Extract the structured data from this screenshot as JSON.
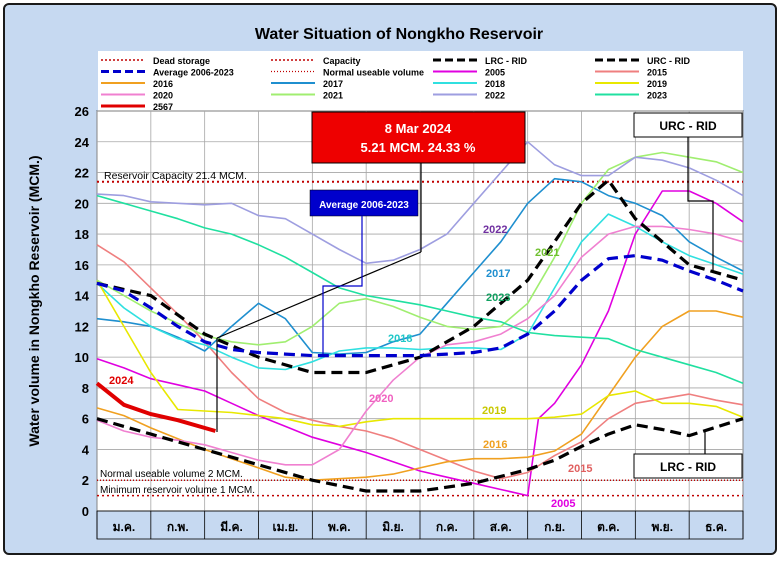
{
  "chart_data": {
    "type": "line",
    "title": "Water Situation of Nongkho Reservoir",
    "ylabel": "Water volume in Nongkho Reservoir (MCM.)",
    "xlabel": "",
    "ylim": [
      0,
      26
    ],
    "yticks": [
      0,
      2,
      4,
      6,
      8,
      10,
      12,
      14,
      16,
      18,
      20,
      22,
      24,
      26
    ],
    "months": [
      "ม.ค.",
      "ก.พ.",
      "มี.ค.",
      "เม.ย.",
      "พ.ค.",
      "มิ.ย.",
      "ก.ค.",
      "ส.ค.",
      "ก.ย.",
      "ต.ค.",
      "พ.ย.",
      "ธ.ค."
    ],
    "grid": true,
    "legend_position": "top",
    "reference_lines": [
      {
        "name": "Dead storage",
        "value": 1.0,
        "color": "#c00000"
      },
      {
        "name": "Capacity",
        "value": 21.4,
        "color": "#c00000"
      },
      {
        "name": "Normal useable volume",
        "value": 2.0,
        "color": "#c00000"
      }
    ],
    "series": [
      {
        "name": "LRC - RID",
        "color": "#000000",
        "style": "bold-dash",
        "x": [
          0,
          1,
          2,
          3,
          4,
          5,
          6,
          7,
          8,
          8.5,
          9,
          9.5,
          10,
          10.5,
          11,
          12
        ],
        "values": [
          6,
          5,
          4,
          3,
          2,
          1.3,
          1.3,
          1.8,
          2.7,
          3.3,
          4.2,
          5,
          5.6,
          5.3,
          4.9,
          6
        ]
      },
      {
        "name": "URC - RID",
        "color": "#000000",
        "style": "bold-dash",
        "x": [
          0,
          1,
          2,
          3,
          4,
          5,
          6,
          7,
          8,
          9,
          9.5,
          10,
          11,
          12
        ],
        "values": [
          14.8,
          14,
          11.5,
          10,
          9,
          9,
          10,
          12,
          15,
          20,
          21.5,
          19,
          16,
          15
        ]
      },
      {
        "name": "Average 2006-2023",
        "color": "#0000cc",
        "style": "bold-dash",
        "x": [
          0,
          0.5,
          1,
          1.5,
          2,
          2.5,
          3,
          3.5,
          4,
          4.5,
          5,
          5.5,
          6,
          6.5,
          7,
          7.5,
          8,
          8.5,
          9,
          9.5,
          10,
          10.5,
          11,
          11.5,
          12
        ],
        "values": [
          14.8,
          14.3,
          13.2,
          12,
          11,
          10.5,
          10.3,
          10.2,
          10.1,
          10.1,
          10.1,
          10.1,
          10.1,
          10.2,
          10.3,
          10.6,
          11.5,
          13,
          15,
          16.4,
          16.6,
          16.3,
          15.6,
          15,
          14.3
        ]
      },
      {
        "name": "2005",
        "color": "#e000e0",
        "x": [
          0,
          0.5,
          1,
          1.5,
          2,
          2.5,
          3,
          3.5,
          4,
          4.5,
          5,
          5.5,
          6,
          6.5,
          7,
          7.5,
          8,
          8.2,
          8.5,
          9,
          9.5,
          10,
          10.5,
          11,
          11.5,
          12
        ],
        "values": [
          9.9,
          9.3,
          8.6,
          8.2,
          7.8,
          7,
          6.2,
          5.5,
          4.8,
          4.3,
          3.8,
          3.2,
          2.6,
          2.2,
          1.8,
          1.4,
          1,
          6,
          7,
          9.5,
          13,
          18,
          20.8,
          20.8,
          20,
          18.8
        ]
      },
      {
        "name": "2015",
        "color": "#ef7f7f",
        "x": [
          0,
          0.5,
          1,
          1.5,
          2,
          2.5,
          3,
          3.5,
          4,
          4.5,
          5,
          5.5,
          6,
          6.5,
          7,
          7.5,
          8,
          8.5,
          9,
          9.5,
          10,
          10.5,
          11,
          11.5,
          12
        ],
        "values": [
          17.3,
          16.2,
          14.5,
          12.8,
          11,
          9,
          7.3,
          6.4,
          5.9,
          5.5,
          5.2,
          4.7,
          4,
          3.3,
          2.6,
          2.1,
          2.5,
          3.6,
          4.5,
          6,
          7,
          7.3,
          7.6,
          7.2,
          6.9
        ]
      },
      {
        "name": "2016",
        "color": "#f0a020",
        "x": [
          0,
          0.5,
          1,
          1.5,
          2,
          2.5,
          3,
          3.5,
          4,
          4.5,
          5,
          5.5,
          6,
          6.5,
          7,
          7.5,
          8,
          8.5,
          9,
          9.5,
          10,
          10.5,
          11,
          11.5,
          12
        ],
        "values": [
          6.7,
          6.2,
          5.4,
          4.7,
          4,
          3.4,
          2.8,
          2.2,
          2,
          2.1,
          2.2,
          2.4,
          2.8,
          3.2,
          3.4,
          3.4,
          3.5,
          3.9,
          5,
          7.5,
          10,
          12,
          13,
          13,
          12.6
        ]
      },
      {
        "name": "2017",
        "color": "#1f8fcf",
        "x": [
          0,
          0.5,
          1,
          1.5,
          2,
          2.5,
          3,
          3.5,
          4,
          4.5,
          5,
          5.5,
          6,
          6.5,
          7,
          7.5,
          8,
          8.5,
          9,
          9.5,
          10,
          10.5,
          11,
          11.5,
          12
        ],
        "values": [
          12.5,
          12.3,
          12,
          11.3,
          10.4,
          12,
          13.5,
          12.5,
          10.3,
          10.2,
          10.3,
          11,
          11.5,
          13.5,
          15.5,
          17.5,
          20,
          21.6,
          21.4,
          20.5,
          20,
          19.2,
          17.5,
          16.5,
          15.6
        ]
      },
      {
        "name": "2018",
        "color": "#30e0e0",
        "x": [
          0,
          0.5,
          1,
          1.5,
          2,
          2.5,
          3,
          3.5,
          4,
          4.5,
          5,
          5.5,
          6,
          6.5,
          7,
          7.5,
          8,
          8.5,
          9,
          9.5,
          10,
          10.5,
          11,
          11.5,
          12
        ],
        "values": [
          14.8,
          13.2,
          12,
          11.2,
          10.8,
          10,
          9.3,
          9.2,
          9.7,
          10.4,
          10.6,
          10.6,
          10.5,
          10.6,
          10.6,
          10.5,
          11.5,
          14.5,
          17.5,
          19.3,
          18.5,
          17.5,
          16.6,
          16,
          15.4
        ]
      },
      {
        "name": "2019",
        "color": "#e8e800",
        "x": [
          0,
          0.5,
          1,
          1.5,
          2,
          2.5,
          3,
          3.5,
          4,
          4.5,
          5,
          5.5,
          6,
          6.5,
          7,
          7.5,
          8,
          8.5,
          9,
          9.5,
          10,
          10.5,
          11,
          11.5,
          12
        ],
        "values": [
          15,
          12,
          9,
          6.6,
          6.5,
          6.4,
          6.2,
          6,
          5.6,
          5.5,
          5.8,
          6,
          6,
          6,
          6,
          6,
          6,
          6.1,
          6.3,
          7.5,
          7.8,
          7,
          7,
          6.8,
          6.1
        ]
      },
      {
        "name": "2020",
        "color": "#f080d0",
        "x": [
          0,
          0.5,
          1,
          1.5,
          2,
          2.5,
          3,
          3.5,
          4,
          4.5,
          5,
          5.5,
          6,
          6.5,
          7,
          7.5,
          8,
          8.5,
          9,
          9.5,
          10,
          10.5,
          11,
          11.5,
          12
        ],
        "values": [
          5.9,
          5.2,
          4.8,
          4.6,
          4.3,
          3.8,
          3.3,
          3,
          3,
          4,
          6.5,
          8.5,
          10,
          10.8,
          11,
          11.5,
          12.5,
          14,
          16.5,
          18,
          18.5,
          18.5,
          18.3,
          18,
          17.5
        ]
      },
      {
        "name": "2021",
        "color": "#a0ee70",
        "x": [
          0,
          0.5,
          1,
          1.5,
          2,
          2.5,
          3,
          3.5,
          4,
          4.5,
          5,
          5.5,
          6,
          6.5,
          7,
          7.5,
          8,
          8.5,
          9,
          9.5,
          10,
          10.5,
          11,
          11.5,
          12
        ],
        "values": [
          15,
          14,
          13,
          12.2,
          11.4,
          11,
          10.8,
          11,
          12,
          13.5,
          13.8,
          13.3,
          12.6,
          12,
          11.8,
          12,
          13.5,
          16.5,
          20,
          22.2,
          23,
          23.3,
          23,
          22.7,
          22
        ]
      },
      {
        "name": "2022",
        "color": "#9e9ee0",
        "x": [
          0,
          0.5,
          1,
          1.5,
          2,
          2.5,
          3,
          3.5,
          4,
          4.5,
          5,
          5.5,
          6,
          6.5,
          7,
          7.5,
          8,
          8.5,
          9,
          9.5,
          10,
          10.5,
          11,
          11.5,
          12
        ],
        "values": [
          20.6,
          20.5,
          20.1,
          20,
          19.9,
          20,
          19.2,
          19,
          18,
          17,
          16.1,
          16.3,
          17,
          18,
          20,
          22,
          24,
          22.5,
          21.8,
          21.8,
          23,
          22.8,
          22.3,
          21.5,
          20.5
        ]
      },
      {
        "name": "2023",
        "color": "#20e0a0",
        "x": [
          0,
          0.5,
          1,
          1.5,
          2,
          2.5,
          3,
          3.5,
          4,
          4.5,
          5,
          5.5,
          6,
          6.5,
          7,
          7.5,
          8,
          8.5,
          9,
          9.5,
          10,
          10.5,
          11,
          11.5,
          12
        ],
        "values": [
          20.5,
          20,
          19.5,
          19,
          18.4,
          18,
          17.3,
          16.5,
          15.5,
          14.5,
          14,
          13.7,
          13.4,
          13,
          12.6,
          12.3,
          11.6,
          11.4,
          11.3,
          11.2,
          10.5,
          10,
          9.5,
          9,
          8.3
        ]
      },
      {
        "name": "2567",
        "color": "#e00000",
        "style": "bold",
        "x": [
          0,
          0.5,
          1,
          1.5,
          2.2
        ],
        "values": [
          8.3,
          6.9,
          6.3,
          5.9,
          5.2
        ]
      }
    ],
    "annotations": {
      "callout_date": "8 Mar 2024",
      "callout_value": "5.21 MCM. 24.33 %",
      "average_box": "Average 2006-2023",
      "urc_box": "URC - RID",
      "lrc_box": "LRC - RID",
      "capacity_text": "Reservoir Capacity 21.4 MCM.",
      "normal_text": "Normal useable volume 2 MCM.",
      "minimum_text": "Minimum reservoir volume 1 MCM.",
      "label_2024": "2024",
      "label_2022": "2022",
      "label_2021": "2021",
      "label_2017": "2017",
      "label_2023": "2023",
      "label_2018": "2018",
      "label_2020": "2020",
      "label_2019": "2019",
      "label_2016": "2016",
      "label_2015": "2015",
      "label_2005": "2005"
    }
  }
}
